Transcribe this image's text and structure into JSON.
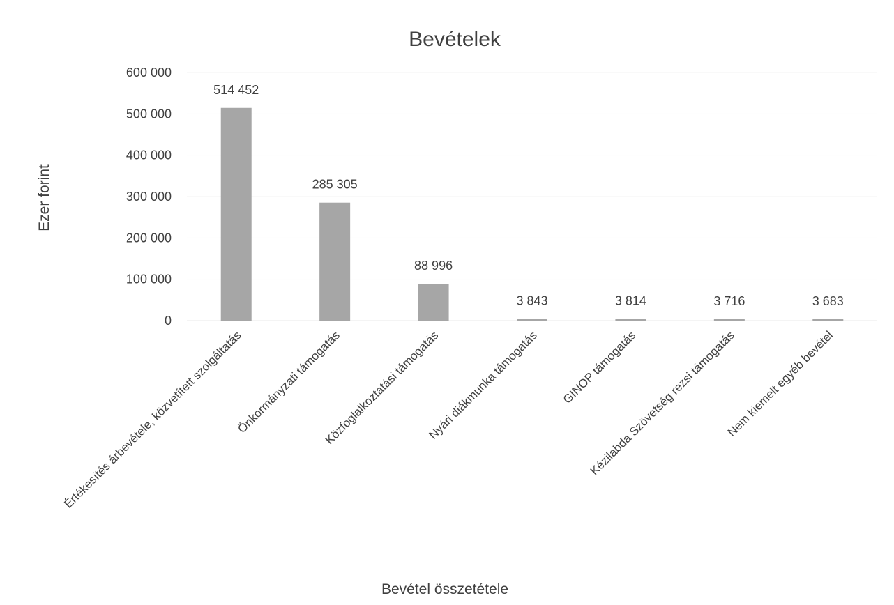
{
  "chart_data": {
    "type": "bar",
    "title": "Bevételek",
    "xlabel": "Bevétel összetétele",
    "ylabel": "Ezer forint",
    "ylim": [
      0,
      600000
    ],
    "yticks": [
      0,
      100000,
      200000,
      300000,
      400000,
      500000,
      600000
    ],
    "ytick_labels": [
      "0",
      "100 000",
      "200 000",
      "300 000",
      "400 000",
      "500 000",
      "600 000"
    ],
    "categories": [
      "Értékesítés árbevétele, közvetített szolgáltatás",
      "Önkormányzati támogatás",
      "Közfoglalkoztatási támogatás",
      "Nyári diákmunka támogatás",
      "GINOP támogatás",
      "Kézilabda Szövetség rezsi támogatás",
      "Nem kiemelt egyéb bevétel"
    ],
    "values": [
      514452,
      285305,
      88996,
      3843,
      3814,
      3716,
      3683
    ],
    "data_labels": [
      "514 452",
      "285 305",
      "88 996",
      "3 843",
      "3 814",
      "3 716",
      "3 683"
    ],
    "grid": true,
    "legend": "none",
    "bar_color": "#a6a6a6"
  }
}
